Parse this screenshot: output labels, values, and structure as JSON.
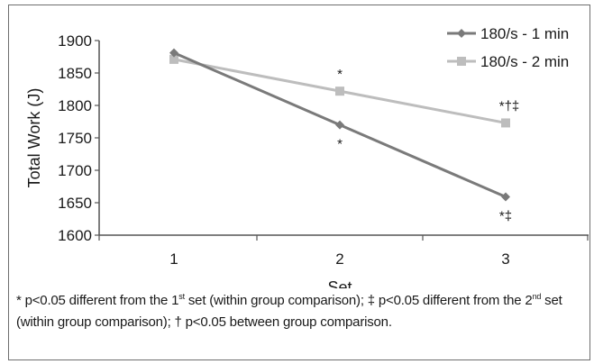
{
  "chart_data": {
    "type": "line",
    "title": "",
    "xlabel": "Set",
    "ylabel": "Total Work (J)",
    "categories": [
      "1",
      "2",
      "3"
    ],
    "ylim": [
      1600,
      1900
    ],
    "yticks": [
      "1600",
      "1650",
      "1700",
      "1750",
      "1800",
      "1850",
      "1900"
    ],
    "grid": false,
    "legend_position": "top-right",
    "series": [
      {
        "name": "180/s - 1 min",
        "marker": "diamond",
        "color": "#7a7a7a",
        "values": [
          1881,
          1770,
          1659
        ],
        "annotations": [
          "",
          "*",
          "*‡"
        ]
      },
      {
        "name": "180/s - 2 min",
        "marker": "square",
        "color": "#bdbdbd",
        "values": [
          1871,
          1822,
          1773
        ],
        "annotations": [
          "",
          "*",
          "*†‡"
        ]
      }
    ]
  },
  "footnote": {
    "part1": "* p<0.05 different from the 1",
    "sup1": "st",
    "part2": " set (within group comparison); ‡ p<0.05 different from the 2",
    "sup2": "nd",
    "part3": " set (within group comparison); † p<0.05 between group comparison."
  }
}
